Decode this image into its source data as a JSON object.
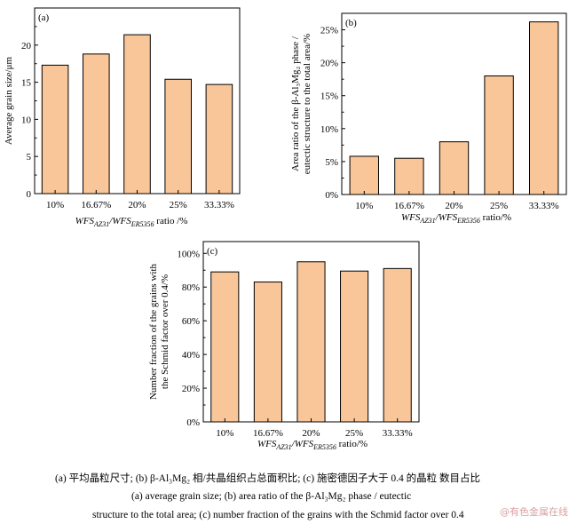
{
  "chart_data": [
    {
      "type": "bar",
      "panel_label": "(a)",
      "categories": [
        "10%",
        "16.67%",
        "20%",
        "25%",
        "33.33%"
      ],
      "values": [
        17.3,
        18.8,
        21.4,
        15.4,
        14.7
      ],
      "ylabel": "Average grain size/μm",
      "xlabel_main": "WFS",
      "xlabel_sub1": "AZ31",
      "xlabel_sep": "/WFS",
      "xlabel_sub2": "ER5356",
      "xlabel_suffix": " ratio /%",
      "ylim": [
        0,
        25
      ],
      "yticks": [
        "0",
        "5",
        "10",
        "15",
        "20"
      ],
      "grid": false
    },
    {
      "type": "bar",
      "panel_label": "(b)",
      "categories": [
        "10%",
        "16.67%",
        "20%",
        "25%",
        "33.33%"
      ],
      "values": [
        5.8,
        5.5,
        8.0,
        18.0,
        26.2
      ],
      "ylabel_line1": "Area ratio of the β-Al₃Mg₂ phase /",
      "ylabel_line2": "eutectic structure to the total area/%",
      "xlabel_main": "WFS",
      "xlabel_sub1": "AZ31",
      "xlabel_sep": "/WFS",
      "xlabel_sub2": "ER5356",
      "xlabel_suffix": " ratio/%",
      "ylim": [
        0,
        27.5
      ],
      "yticks": [
        "0%",
        "5%",
        "10%",
        "15%",
        "20%",
        "25%"
      ],
      "grid": false
    },
    {
      "type": "bar",
      "panel_label": "(c)",
      "categories": [
        "10%",
        "16.67%",
        "20%",
        "25%",
        "33.33%"
      ],
      "values": [
        89,
        83,
        95,
        89.5,
        91
      ],
      "ylabel_line1": "Number fraction of the grains with",
      "ylabel_line2": "the Schmid factor over 0.4/%",
      "xlabel_main": "WFS",
      "xlabel_sub1": "AZ31",
      "xlabel_sep": "/WFS",
      "xlabel_sub2": "ER5356",
      "xlabel_suffix": " ratio/%",
      "ylim": [
        0,
        107
      ],
      "yticks": [
        "0%",
        "20%",
        "40%",
        "60%",
        "80%",
        "100%"
      ],
      "grid": false
    }
  ],
  "caption": {
    "line1": "(a)  平均晶粒尺寸; (b) β-Al₃Mg₂ 相/共晶组织占总面积比; (c)  施密德因子大于 0.4 的晶粒 数目占比",
    "line2": "(a)  average  grain  size;  (b)  area  ratio  of  the  β-Al₃Mg₂  phase  /  eutectic",
    "line3": "structure to the total area; (c) number fraction of the grains with the Schmid factor over 0.4"
  },
  "watermark": "@有色金属在线",
  "colors": {
    "bar_fill": "#f9c69a",
    "bar_stroke": "#000000",
    "axis": "#000000"
  }
}
